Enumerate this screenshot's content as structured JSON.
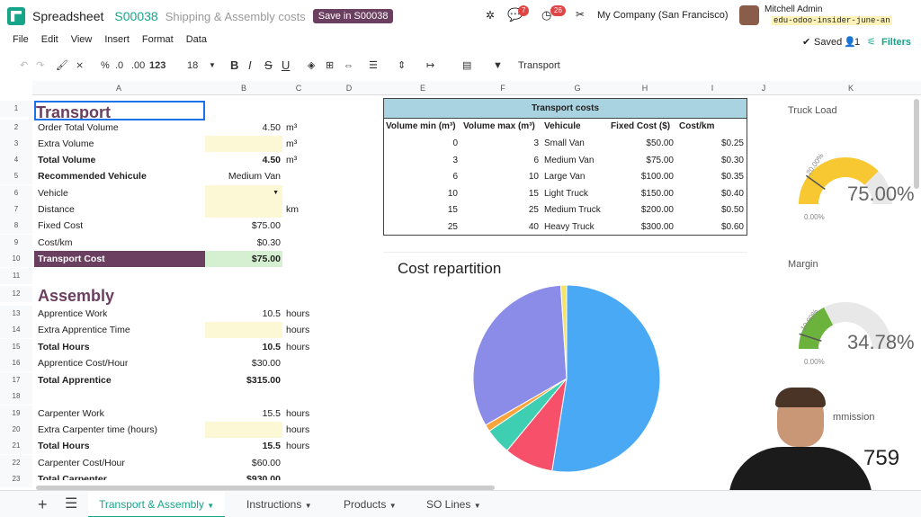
{
  "topbar": {
    "app_name": "Spreadsheet",
    "record": "S00038",
    "doc_title": "Shipping & Assembly costs",
    "save_button": "Save in S00038",
    "chat_badge": "7",
    "activity_badge": "26",
    "company": "My Company (San Francisco)",
    "user_name": "Mitchell Admin",
    "database": "edu-odoo-insider-june-an"
  },
  "menu": [
    "File",
    "Edit",
    "View",
    "Insert",
    "Format",
    "Data"
  ],
  "status": {
    "saved": "Saved",
    "collaborators": "1",
    "filters": "Filters"
  },
  "toolbar": {
    "percent": "%",
    "dec_less": ".0",
    ".dec_more": ".00",
    "format": "123",
    "font_size": "18",
    "bold": "B",
    "italic": "I",
    "strike": "S",
    "underline": "U",
    "link": "Transport"
  },
  "columns": [
    "A",
    "B",
    "C",
    "D",
    "E",
    "F",
    "G",
    "H",
    "I",
    "J",
    "K"
  ],
  "rows": [
    "1",
    "2",
    "3",
    "4",
    "5",
    "6",
    "7",
    "8",
    "9",
    "10",
    "11",
    "12",
    "13",
    "14",
    "15",
    "16",
    "17",
    "18",
    "19",
    "20",
    "21",
    "22",
    "23"
  ],
  "sheet": {
    "transport_title": "Transport",
    "r2": {
      "label": "Order Total Volume",
      "value": "4.50",
      "unit": "m³"
    },
    "r3": {
      "label": "Extra Volume",
      "value": "",
      "unit": "m³"
    },
    "r4": {
      "label": "Total Volume",
      "value": "4.50",
      "unit": "m³"
    },
    "r5": {
      "label": "Recommended Vehicule",
      "value": "Medium Van"
    },
    "r6": {
      "label": "Vehicle"
    },
    "r7": {
      "label": "Distance",
      "unit": "km"
    },
    "r8": {
      "label": "Fixed Cost",
      "value": "$75.00"
    },
    "r9": {
      "label": "Cost/km",
      "value": "$0.30"
    },
    "r10": {
      "label": "Transport Cost",
      "value": "$75.00"
    },
    "assembly_title": "Assembly",
    "r13": {
      "label": "Apprentice Work",
      "value": "10.5",
      "unit": "hours"
    },
    "r14": {
      "label": "Extra Apprentice Time",
      "unit": "hours"
    },
    "r15": {
      "label": "Total Hours",
      "value": "10.5",
      "unit": "hours"
    },
    "r16": {
      "label": "Apprentice Cost/Hour",
      "value": "$30.00"
    },
    "r17": {
      "label": "Total Apprentice",
      "value": "$315.00"
    },
    "r19": {
      "label": "Carpenter Work",
      "value": "15.5",
      "unit": "hours"
    },
    "r20": {
      "label": "Extra Carpenter time (hours)",
      "unit": "hours"
    },
    "r21": {
      "label": "Total Hours",
      "value": "15.5",
      "unit": "hours"
    },
    "r22": {
      "label": "Carpenter Cost/Hour",
      "value": "$60.00"
    },
    "r23": {
      "label": "Total Carpenter",
      "value": "$930.00"
    }
  },
  "transport_costs": {
    "title": "Transport costs",
    "headers": [
      "Volume min (m³)",
      "Volume max (m³)",
      "Vehicule",
      "Fixed Cost ($)",
      "Cost/km"
    ],
    "rows": [
      [
        "0",
        "3",
        "Small Van",
        "$50.00",
        "$0.25"
      ],
      [
        "3",
        "6",
        "Medium Van",
        "$75.00",
        "$0.30"
      ],
      [
        "6",
        "10",
        "Large Van",
        "$100.00",
        "$0.35"
      ],
      [
        "10",
        "15",
        "Light Truck",
        "$150.00",
        "$0.40"
      ],
      [
        "15",
        "25",
        "Medium Truck",
        "$200.00",
        "$0.50"
      ],
      [
        "25",
        "40",
        "Heavy Truck",
        "$300.00",
        "$0.60"
      ]
    ]
  },
  "chart_data": [
    {
      "type": "pie",
      "title": "Cost repartition",
      "values": [
        52.5,
        8.5,
        4.5,
        1.2,
        32.3,
        1.0
      ],
      "colors": [
        "#4aa9f5",
        "#f6506b",
        "#3ecfb2",
        "#f9a43c",
        "#8b8be8",
        "#f5e26a"
      ]
    },
    {
      "type": "gauge",
      "title": "Truck Load",
      "value_label": "75.00%",
      "value": 75,
      "min_label": "0.00%",
      "threshold_label": "20.00%",
      "color": "#f8c832"
    },
    {
      "type": "gauge",
      "title": "Margin",
      "value_label": "34.78%",
      "value": 34.78,
      "min_label": "0.00%",
      "threshold_label": "10.00%",
      "color": "#6cb33e"
    }
  ],
  "commission": {
    "title": "mmission",
    "value": "759"
  },
  "tabs": [
    "Transport & Assembly",
    "Instructions",
    "Products",
    "SO Lines"
  ]
}
